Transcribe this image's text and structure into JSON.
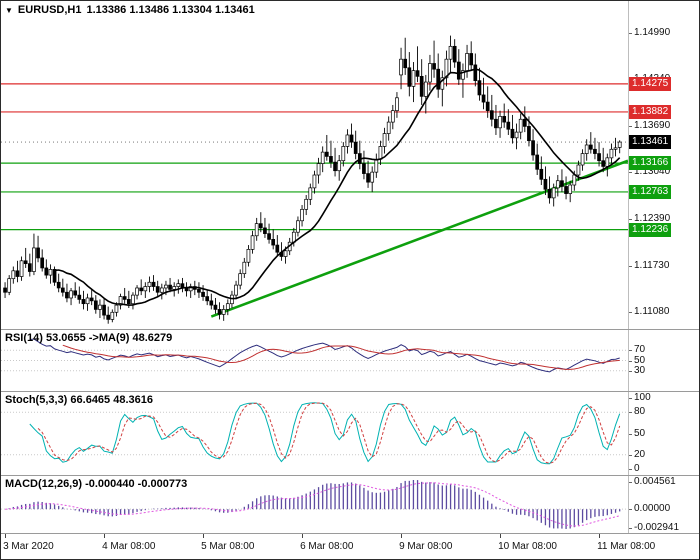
{
  "header": {
    "dropdown_icon": "▼",
    "symbol_timeframe": "EURUSD,H1",
    "ohlc_values": "1.13386 1.13486 1.13304 1.13461"
  },
  "chart_data": {
    "type": "candlestick",
    "symbol": "EURUSD",
    "timeframe": "H1",
    "current_bar": {
      "open": 1.13386,
      "high": 1.13486,
      "low": 1.13304,
      "close": 1.13461
    },
    "ylim": [
      1.1093,
      1.1535
    ],
    "y_axis_labels": [
      "1.14990",
      "1.14340",
      "1.13690",
      "1.13040",
      "1.12390",
      "1.11730",
      "1.11080"
    ],
    "x_axis_labels": [
      {
        "label": "3 Mar 2020",
        "index": 0
      },
      {
        "label": "4 Mar 08:00",
        "index": 24
      },
      {
        "label": "5 Mar 08:00",
        "index": 48
      },
      {
        "label": "6 Mar 08:00",
        "index": 72
      },
      {
        "label": "9 Mar 08:00",
        "index": 96
      },
      {
        "label": "10 Mar 08:00",
        "index": 120
      },
      {
        "label": "11 Mar 08:00",
        "index": 144
      }
    ],
    "resistance_levels": [
      {
        "price": 1.14275,
        "label": "1.14275"
      },
      {
        "price": 1.13882,
        "label": "1.13882"
      }
    ],
    "support_levels": [
      {
        "price": 1.13166,
        "label": "1.13166"
      },
      {
        "price": 1.12763,
        "label": "1.12763"
      },
      {
        "price": 1.12236,
        "label": "1.12236"
      }
    ],
    "current_price_label": {
      "price": 1.13461,
      "label": "1.13461"
    },
    "trendline": {
      "start_index": 50,
      "start_price": 1.1102,
      "end_index": 151,
      "end_price": 1.132
    },
    "ma_period": 13,
    "candles": [
      [
        1.1142,
        1.115,
        1.1128,
        1.1136
      ],
      [
        1.1136,
        1.116,
        1.1132,
        1.1155
      ],
      [
        1.1155,
        1.1172,
        1.1148,
        1.1166
      ],
      [
        1.1166,
        1.118,
        1.115,
        1.1158
      ],
      [
        1.1158,
        1.1186,
        1.1152,
        1.118
      ],
      [
        1.118,
        1.1198,
        1.117,
        1.1176
      ],
      [
        1.1176,
        1.119,
        1.1158,
        1.1165
      ],
      [
        1.1165,
        1.1218,
        1.116,
        1.1198
      ],
      [
        1.1198,
        1.1215,
        1.1178,
        1.1184
      ],
      [
        1.1184,
        1.1196,
        1.1165,
        1.117
      ],
      [
        1.117,
        1.1182,
        1.1155,
        1.116
      ],
      [
        1.116,
        1.1175,
        1.1148,
        1.1168
      ],
      [
        1.1168,
        1.1172,
        1.1145,
        1.115
      ],
      [
        1.115,
        1.1162,
        1.1136,
        1.1142
      ],
      [
        1.1142,
        1.1155,
        1.113,
        1.1136
      ],
      [
        1.1136,
        1.1148,
        1.1122,
        1.1128
      ],
      [
        1.1128,
        1.1142,
        1.1118,
        1.1138
      ],
      [
        1.1138,
        1.115,
        1.1128,
        1.1132
      ],
      [
        1.1132,
        1.1144,
        1.112,
        1.1126
      ],
      [
        1.1126,
        1.1138,
        1.1112,
        1.112
      ],
      [
        1.112,
        1.1134,
        1.111,
        1.1128
      ],
      [
        1.1128,
        1.114,
        1.1118,
        1.1124
      ],
      [
        1.1124,
        1.1132,
        1.1106,
        1.1112
      ],
      [
        1.1112,
        1.1126,
        1.11,
        1.1118
      ],
      [
        1.1118,
        1.1128,
        1.1098,
        1.1104
      ],
      [
        1.1104,
        1.1116,
        1.1092,
        1.1098
      ],
      [
        1.1098,
        1.1112,
        1.1094,
        1.1108
      ],
      [
        1.1108,
        1.1122,
        1.1102,
        1.1118
      ],
      [
        1.1118,
        1.1134,
        1.1112,
        1.113
      ],
      [
        1.113,
        1.1142,
        1.112,
        1.1126
      ],
      [
        1.1126,
        1.1138,
        1.1114,
        1.112
      ],
      [
        1.112,
        1.1136,
        1.1112,
        1.1132
      ],
      [
        1.1132,
        1.1146,
        1.1126,
        1.1142
      ],
      [
        1.1142,
        1.1154,
        1.1132,
        1.1138
      ],
      [
        1.1138,
        1.115,
        1.1128,
        1.1144
      ],
      [
        1.1144,
        1.1158,
        1.1136,
        1.115
      ],
      [
        1.115,
        1.116,
        1.1138,
        1.1144
      ],
      [
        1.1144,
        1.1152,
        1.113,
        1.1136
      ],
      [
        1.1136,
        1.1148,
        1.1126,
        1.1142
      ],
      [
        1.1142,
        1.1152,
        1.1132,
        1.1146
      ],
      [
        1.1146,
        1.1156,
        1.1136,
        1.114
      ],
      [
        1.114,
        1.115,
        1.113,
        1.1144
      ],
      [
        1.1144,
        1.1154,
        1.1134,
        1.1148
      ],
      [
        1.1148,
        1.1156,
        1.1136,
        1.1142
      ],
      [
        1.1142,
        1.115,
        1.113,
        1.1138
      ],
      [
        1.1138,
        1.1148,
        1.1128,
        1.1144
      ],
      [
        1.1144,
        1.1152,
        1.1132,
        1.114
      ],
      [
        1.114,
        1.115,
        1.1128,
        1.1136
      ],
      [
        1.1136,
        1.1146,
        1.1124,
        1.113
      ],
      [
        1.113,
        1.114,
        1.1118,
        1.1124
      ],
      [
        1.1124,
        1.1134,
        1.1112,
        1.1118
      ],
      [
        1.1118,
        1.1128,
        1.1106,
        1.1112
      ],
      [
        1.1112,
        1.1122,
        1.1098,
        1.1105
      ],
      [
        1.1105,
        1.1118,
        1.1096,
        1.1112
      ],
      [
        1.1112,
        1.1126,
        1.1104,
        1.112
      ],
      [
        1.112,
        1.1138,
        1.1114,
        1.1132
      ],
      [
        1.1132,
        1.1152,
        1.1126,
        1.1146
      ],
      [
        1.1146,
        1.1168,
        1.114,
        1.1162
      ],
      [
        1.1162,
        1.1184,
        1.1156,
        1.1178
      ],
      [
        1.1178,
        1.1202,
        1.1172,
        1.1196
      ],
      [
        1.1196,
        1.1222,
        1.119,
        1.1215
      ],
      [
        1.1215,
        1.124,
        1.1208,
        1.1232
      ],
      [
        1.1232,
        1.1248,
        1.122,
        1.1226
      ],
      [
        1.1226,
        1.124,
        1.1212,
        1.1218
      ],
      [
        1.1218,
        1.1232,
        1.1204,
        1.121
      ],
      [
        1.121,
        1.1224,
        1.1196,
        1.1202
      ],
      [
        1.1202,
        1.1216,
        1.1186,
        1.1192
      ],
      [
        1.1192,
        1.1206,
        1.118,
        1.1186
      ],
      [
        1.1186,
        1.12,
        1.1176,
        1.1194
      ],
      [
        1.1194,
        1.1212,
        1.1188,
        1.1206
      ],
      [
        1.1206,
        1.1226,
        1.12,
        1.122
      ],
      [
        1.122,
        1.1242,
        1.1214,
        1.1236
      ],
      [
        1.1236,
        1.1258,
        1.1228,
        1.1252
      ],
      [
        1.1252,
        1.1272,
        1.1244,
        1.1266
      ],
      [
        1.1266,
        1.1288,
        1.1258,
        1.1282
      ],
      [
        1.1282,
        1.1306,
        1.1274,
        1.13
      ],
      [
        1.13,
        1.1324,
        1.1288,
        1.1316
      ],
      [
        1.1316,
        1.134,
        1.1304,
        1.1332
      ],
      [
        1.1332,
        1.1356,
        1.132,
        1.1326
      ],
      [
        1.1326,
        1.1348,
        1.131,
        1.1318
      ],
      [
        1.1318,
        1.1338,
        1.1298,
        1.1306
      ],
      [
        1.1306,
        1.1328,
        1.1292,
        1.132
      ],
      [
        1.132,
        1.1346,
        1.1312,
        1.134
      ],
      [
        1.134,
        1.1364,
        1.133,
        1.1356
      ],
      [
        1.1356,
        1.1372,
        1.1338,
        1.1346
      ],
      [
        1.1346,
        1.1362,
        1.1322,
        1.133
      ],
      [
        1.133,
        1.1348,
        1.1308,
        1.1316
      ],
      [
        1.1316,
        1.1334,
        1.1294,
        1.1302
      ],
      [
        1.1302,
        1.132,
        1.1282,
        1.129
      ],
      [
        1.129,
        1.1312,
        1.1276,
        1.1304
      ],
      [
        1.1304,
        1.133,
        1.1296,
        1.1322
      ],
      [
        1.1322,
        1.1348,
        1.1314,
        1.134
      ],
      [
        1.134,
        1.1366,
        1.133,
        1.1358
      ],
      [
        1.1358,
        1.1382,
        1.1348,
        1.1374
      ],
      [
        1.1374,
        1.1398,
        1.1364,
        1.139
      ],
      [
        1.139,
        1.1416,
        1.138,
        1.1408
      ],
      [
        1.144,
        1.1478,
        1.142,
        1.1462
      ],
      [
        1.1462,
        1.1492,
        1.144,
        1.145
      ],
      [
        1.145,
        1.1472,
        1.141,
        1.1424
      ],
      [
        1.1424,
        1.1458,
        1.1402,
        1.1446
      ],
      [
        1.1446,
        1.148,
        1.143,
        1.1438
      ],
      [
        1.1438,
        1.1462,
        1.1398,
        1.141
      ],
      [
        1.141,
        1.144,
        1.1386,
        1.143
      ],
      [
        1.143,
        1.1468,
        1.1418,
        1.1456
      ],
      [
        1.1456,
        1.1488,
        1.1436,
        1.1448
      ],
      [
        1.1448,
        1.147,
        1.1408,
        1.142
      ],
      [
        1.142,
        1.1446,
        1.1396,
        1.1436
      ],
      [
        1.1436,
        1.1474,
        1.1424,
        1.1462
      ],
      [
        1.1462,
        1.1495,
        1.1444,
        1.148
      ],
      [
        1.148,
        1.149,
        1.145,
        1.1458
      ],
      [
        1.1458,
        1.1476,
        1.1426,
        1.1434
      ],
      [
        1.1434,
        1.1456,
        1.1408,
        1.1446
      ],
      [
        1.1446,
        1.1482,
        1.1436,
        1.147
      ],
      [
        1.147,
        1.1487,
        1.1446,
        1.1454
      ],
      [
        1.1454,
        1.147,
        1.1424,
        1.1432
      ],
      [
        1.1432,
        1.145,
        1.1404,
        1.1412
      ],
      [
        1.1412,
        1.1436,
        1.1392,
        1.1402
      ],
      [
        1.1402,
        1.1424,
        1.138,
        1.139
      ],
      [
        1.139,
        1.1412,
        1.1368,
        1.1378
      ],
      [
        1.1378,
        1.1398,
        1.1356,
        1.1366
      ],
      [
        1.1366,
        1.139,
        1.1352,
        1.1382
      ],
      [
        1.1382,
        1.14,
        1.1366,
        1.1374
      ],
      [
        1.1374,
        1.1392,
        1.1356,
        1.1364
      ],
      [
        1.1364,
        1.1384,
        1.1344,
        1.1352
      ],
      [
        1.1352,
        1.1372,
        1.1336,
        1.136
      ],
      [
        1.136,
        1.1386,
        1.135,
        1.1378
      ],
      [
        1.1378,
        1.1396,
        1.136,
        1.1368
      ],
      [
        1.1368,
        1.1382,
        1.134,
        1.1348
      ],
      [
        1.1348,
        1.1364,
        1.132,
        1.1328
      ],
      [
        1.1328,
        1.1344,
        1.13,
        1.1308
      ],
      [
        1.1308,
        1.1326,
        1.1286,
        1.1294
      ],
      [
        1.1294,
        1.1312,
        1.1272,
        1.128
      ],
      [
        1.128,
        1.1298,
        1.126,
        1.1268
      ],
      [
        1.1268,
        1.1288,
        1.1256,
        1.1282
      ],
      [
        1.1282,
        1.13,
        1.127,
        1.1292
      ],
      [
        1.1292,
        1.1308,
        1.1276,
        1.1284
      ],
      [
        1.1284,
        1.1298,
        1.1266,
        1.1274
      ],
      [
        1.1274,
        1.1292,
        1.1262,
        1.1286
      ],
      [
        1.1286,
        1.1306,
        1.1278,
        1.13
      ],
      [
        1.13,
        1.132,
        1.1292,
        1.1314
      ],
      [
        1.1314,
        1.1336,
        1.1306,
        1.133
      ],
      [
        1.133,
        1.135,
        1.132,
        1.1342
      ],
      [
        1.1342,
        1.136,
        1.133,
        1.1336
      ],
      [
        1.1336,
        1.1352,
        1.1322,
        1.133
      ],
      [
        1.133,
        1.1346,
        1.1312,
        1.132
      ],
      [
        1.132,
        1.1338,
        1.1304,
        1.1312
      ],
      [
        1.1312,
        1.133,
        1.1298,
        1.1324
      ],
      [
        1.1324,
        1.1344,
        1.1316,
        1.1336
      ],
      [
        1.1336,
        1.1352,
        1.1326,
        1.1338
      ],
      [
        1.13386,
        1.13486,
        1.13304,
        1.13461
      ]
    ],
    "indicators": {
      "rsi": {
        "title": "RSI(14) 53.0655 ->MA(9) 48.6279",
        "period": 14,
        "ma_period": 9,
        "value": 53.0655,
        "ma_value": 48.6279,
        "levels": [
          70,
          50,
          30
        ],
        "axis_labels": [
          "70",
          "50",
          "30"
        ]
      },
      "stoch": {
        "title": "Stoch(5,3,3) 66.6465 48.3616",
        "k_period": 5,
        "d_period": 3,
        "slowing": 3,
        "k_value": 66.6465,
        "d_value": 48.3616,
        "levels": [
          80,
          20
        ],
        "axis_labels": [
          "100",
          "80",
          "50",
          "20",
          "0"
        ]
      },
      "macd": {
        "title": "MACD(12,26,9) -0.000440 -0.000773",
        "fast": 12,
        "slow": 26,
        "signal": 9,
        "macd_value": -0.00044,
        "signal_value": -0.000773,
        "axis_labels": [
          "0.004561",
          "0.00000",
          "-0.002941"
        ]
      }
    },
    "colors": {
      "background": "#ffffff",
      "candle_up": "#ffffff",
      "candle_down": "#000000",
      "candle_border": "#000000",
      "ma_line": "#000000",
      "resistance": "#dd2c2c",
      "support": "#0ea00e",
      "trendline": "#0ea00e",
      "current_price_bg": "#000000",
      "current_price_line": "#666666",
      "rsi_line": "#2e2e7d",
      "rsi_ma_line": "#c03030",
      "stoch_k": "#00b2b2",
      "stoch_d": "#d04040",
      "macd_histogram": "#5c4ba0",
      "macd_signal": "#e055e0",
      "grid_dotted": "#c9c9c9",
      "axis_text": "#000000"
    }
  }
}
